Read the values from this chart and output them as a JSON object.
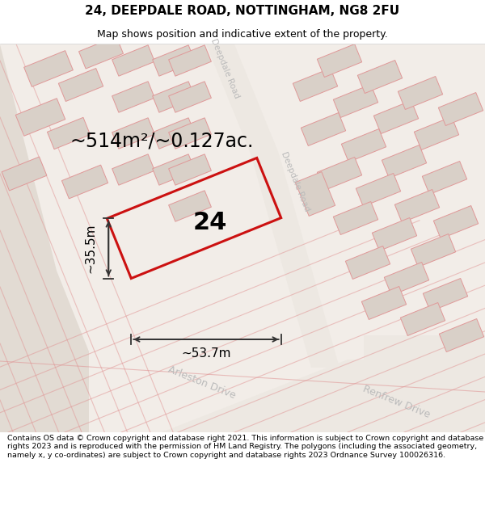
{
  "title": "24, DEEPDALE ROAD, NOTTINGHAM, NG8 2FU",
  "subtitle": "Map shows position and indicative extent of the property.",
  "footer": "Contains OS data © Crown copyright and database right 2021. This information is subject to Crown copyright and database rights 2023 and is reproduced with the permission of HM Land Registry. The polygons (including the associated geometry, namely x, y co-ordinates) are subject to Crown copyright and database rights 2023 Ordnance Survey 100026316.",
  "area_label": "~514m²/~0.127ac.",
  "property_number": "24",
  "dim_width": "~53.7m",
  "dim_height": "~35.5m",
  "map_bg": "#f2ede8",
  "block_fill": "#d9d0c8",
  "block_edge": "#e09898",
  "property_color": "#cc1111",
  "dim_color": "#333333",
  "road_label_color": "#bbbbbb",
  "title_fontsize": 11,
  "subtitle_fontsize": 9,
  "footer_fontsize": 6.8,
  "area_fontsize": 17,
  "number_fontsize": 22,
  "dim_fontsize": 11
}
